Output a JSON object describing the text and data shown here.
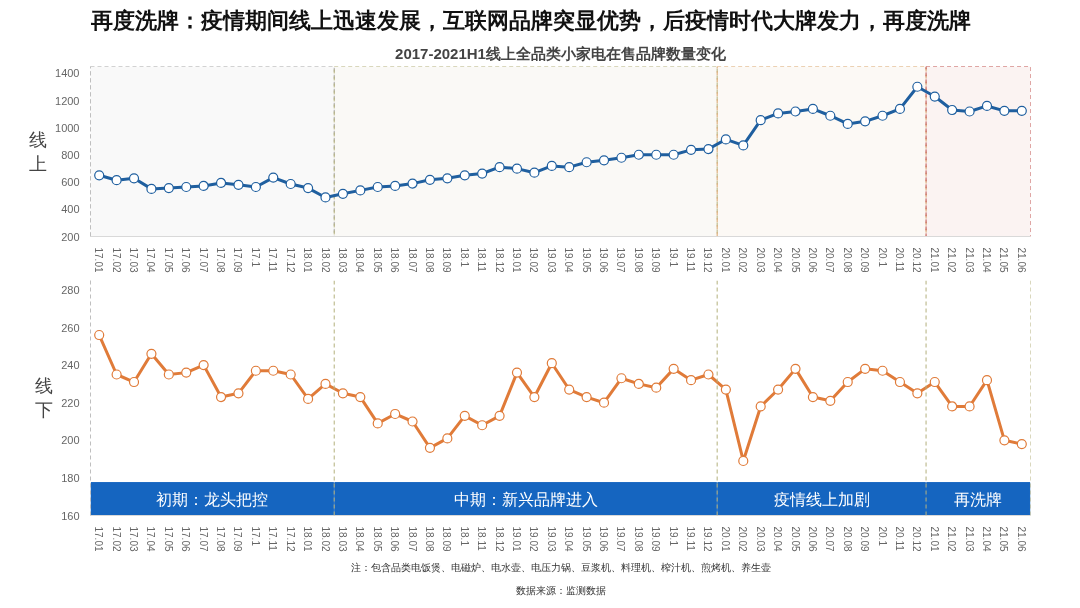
{
  "chart_data": [
    {
      "type": "line",
      "title": "再度洗牌：疫情期间线上迅速发展，互联网品牌突显优势，后疫情时代大牌发力，再度洗牌",
      "subtitle": "2017-2021H1线上全品类小家电在售品牌数量变化",
      "ylabel": "线上",
      "categories": [
        "17.01",
        "17.02",
        "17.03",
        "17.04",
        "17.05",
        "17.06",
        "17.07",
        "17.08",
        "17.09",
        "17.1",
        "17.11",
        "17.12",
        "18.01",
        "18.02",
        "18.03",
        "18.04",
        "18.05",
        "18.06",
        "18.07",
        "18.08",
        "18.09",
        "18.1",
        "18.11",
        "18.12",
        "19.01",
        "19.02",
        "19.03",
        "19.04",
        "19.05",
        "19.06",
        "19.07",
        "19.08",
        "19.09",
        "19.1",
        "19.11",
        "19.12",
        "20.01",
        "20.02",
        "20.03",
        "20.04",
        "20.05",
        "20.06",
        "20.07",
        "20.08",
        "20.09",
        "20.1",
        "20.11",
        "20.12",
        "21.01",
        "21.02",
        "21.03",
        "21.04",
        "21.05",
        "21.06"
      ],
      "series": [
        {
          "color": "#1f5f9f",
          "values": [
            650,
            614,
            628,
            550,
            556,
            564,
            572,
            594,
            580,
            564,
            633,
            586,
            556,
            487,
            514,
            539,
            564,
            572,
            589,
            617,
            628,
            650,
            663,
            710,
            699,
            669,
            719,
            710,
            746,
            760,
            779,
            801,
            801,
            801,
            837,
            843,
            914,
            870,
            1055,
            1105,
            1119,
            1138,
            1088,
            1028,
            1047,
            1088,
            1138,
            1301,
            1229,
            1130,
            1119,
            1160,
            1124,
            1124
          ]
        }
      ],
      "ylim": [
        200,
        1450
      ],
      "yticks": [
        200,
        400,
        600,
        800,
        1000,
        1200,
        1400
      ],
      "grid": false,
      "marker": "circle",
      "line_style": "solid",
      "bands": [
        {
          "axis": "x",
          "from": "17.01",
          "to": "18.02",
          "color": "#a6a6a6"
        },
        {
          "axis": "x",
          "from": "18.03",
          "to": "19.12",
          "color": "#b3b07c"
        },
        {
          "axis": "x",
          "from": "20.01",
          "to": "20.12",
          "color": "#d9a36b"
        },
        {
          "axis": "x",
          "from": "21.01",
          "to": "21.06",
          "color": "#c0504d"
        }
      ]
    },
    {
      "type": "line",
      "ylabel": "线下",
      "categories": [
        "17.01",
        "17.02",
        "17.03",
        "17.04",
        "17.05",
        "17.06",
        "17.07",
        "17.08",
        "17.09",
        "17.1",
        "17.11",
        "17.12",
        "18.01",
        "18.02",
        "18.03",
        "18.04",
        "18.05",
        "18.06",
        "18.07",
        "18.08",
        "18.09",
        "18.1",
        "18.11",
        "18.12",
        "19.01",
        "19.02",
        "19.03",
        "19.04",
        "19.05",
        "19.06",
        "19.07",
        "19.08",
        "19.09",
        "19.1",
        "19.11",
        "19.12",
        "20.01",
        "20.02",
        "20.03",
        "20.04",
        "20.05",
        "20.06",
        "20.07",
        "20.08",
        "20.09",
        "20.1",
        "20.11",
        "20.12",
        "21.01",
        "21.02",
        "21.03",
        "21.04",
        "21.05",
        "21.06"
      ],
      "series": [
        {
          "color": "#e07b39",
          "values": [
            256,
            235,
            231,
            246,
            235,
            236,
            240,
            223,
            225,
            237,
            237,
            235,
            222,
            230,
            225,
            223,
            209,
            214,
            210,
            196,
            201,
            213,
            208,
            213,
            236,
            223,
            241,
            227,
            223,
            220,
            233,
            230,
            228,
            238,
            232,
            235,
            227,
            189,
            218,
            227,
            238,
            223,
            221,
            231,
            238,
            237,
            231,
            225,
            231,
            218,
            218,
            232,
            200,
            198
          ]
        }
      ],
      "ylim": [
        160,
        285
      ],
      "yticks": [
        160,
        180,
        200,
        220,
        240,
        260,
        280
      ],
      "grid": false,
      "marker": "circle",
      "line_style": "solid",
      "bands": [
        {
          "axis": "x",
          "from": "17.01",
          "to": "18.02",
          "label": "初期：龙头把控",
          "color": "#1565c0"
        },
        {
          "axis": "x",
          "from": "18.03",
          "to": "19.12",
          "label": "中期：新兴品牌进入",
          "color": "#1565c0"
        },
        {
          "axis": "x",
          "from": "20.01",
          "to": "20.12",
          "label": "疫情线上加剧",
          "color": "#1565c0"
        },
        {
          "axis": "x",
          "from": "21.01",
          "to": "21.06",
          "label": "再洗牌",
          "color": "#1565c0"
        }
      ],
      "annotations": [
        "注：包含品类电饭煲、电磁炉、电水壶、电压力锅、豆浆机、料理机、榨汁机、煎烤机、养生壶",
        "数据来源：监测数据"
      ]
    }
  ]
}
